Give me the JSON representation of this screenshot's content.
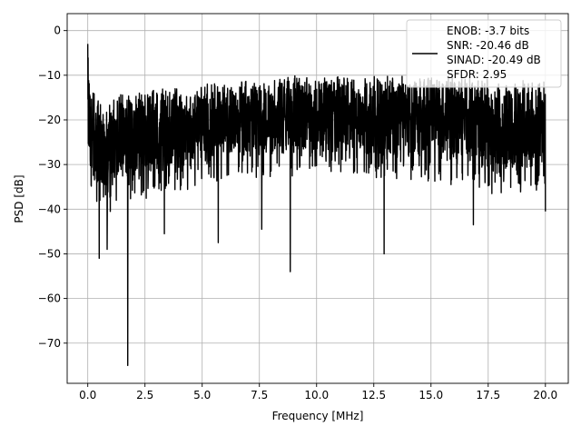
{
  "chart_data": {
    "type": "line",
    "title": "",
    "xlabel": "Frequency [MHz]",
    "ylabel": "PSD [dB]",
    "xlim": [
      -0.9,
      21.0
    ],
    "ylim": [
      -79.0,
      3.8
    ],
    "xticks": [
      0.0,
      2.5,
      5.0,
      7.5,
      10.0,
      12.5,
      15.0,
      17.5,
      20.0
    ],
    "xtick_labels": [
      "0.0",
      "2.5",
      "5.0",
      "7.5",
      "10.0",
      "12.5",
      "15.0",
      "17.5",
      "20.0"
    ],
    "yticks": [
      0,
      -10,
      -20,
      -30,
      -40,
      -50,
      -60,
      -70
    ],
    "ytick_labels": [
      "0",
      "−10",
      "−20",
      "−30",
      "−40",
      "−50",
      "−60",
      "−70"
    ],
    "grid": true,
    "legend": {
      "placement": "top-right",
      "entries": [
        "ENOB: -3.7 bits",
        "SNR: -20.46 dB",
        "SINAD: -20.49 dB",
        "SFDR: 2.95"
      ]
    },
    "series": [
      {
        "color": "#000000",
        "envelope": {
          "x": [
            0.0,
            0.1,
            0.5,
            1.0,
            1.5,
            2.0,
            2.5,
            3.0,
            3.5,
            4.0,
            5.0,
            6.0,
            7.0,
            8.0,
            9.0,
            10.0,
            11.0,
            12.0,
            13.0,
            14.0,
            15.0,
            16.0,
            17.0,
            18.0,
            19.0,
            20.0
          ],
          "upper": [
            -3,
            -12,
            -15,
            -15,
            -14,
            -14,
            -14,
            -13,
            -13,
            -12,
            -12,
            -11,
            -11,
            -11,
            -10,
            -10,
            -10,
            -10,
            -10,
            -10,
            -10,
            -10,
            -10,
            -11,
            -11,
            -11
          ],
          "lower": [
            -26,
            -33,
            -36,
            -36,
            -34,
            -33,
            -33,
            -32,
            -31,
            -31,
            -30,
            -28,
            -28,
            -28,
            -28,
            -27,
            -27,
            -28,
            -28,
            -29,
            -29,
            -30,
            -31,
            -32,
            -32,
            -30
          ]
        },
        "dips": [
          {
            "x": 0.5,
            "y": -51
          },
          {
            "x": 0.85,
            "y": -49
          },
          {
            "x": 1.75,
            "y": -75
          },
          {
            "x": 3.35,
            "y": -45.5
          },
          {
            "x": 5.7,
            "y": -47.5
          },
          {
            "x": 7.6,
            "y": -44.5
          },
          {
            "x": 8.85,
            "y": -54
          },
          {
            "x": 12.95,
            "y": -50
          },
          {
            "x": 16.85,
            "y": -43.5
          },
          {
            "x": 20.0,
            "y": -40.5
          }
        ]
      }
    ]
  }
}
